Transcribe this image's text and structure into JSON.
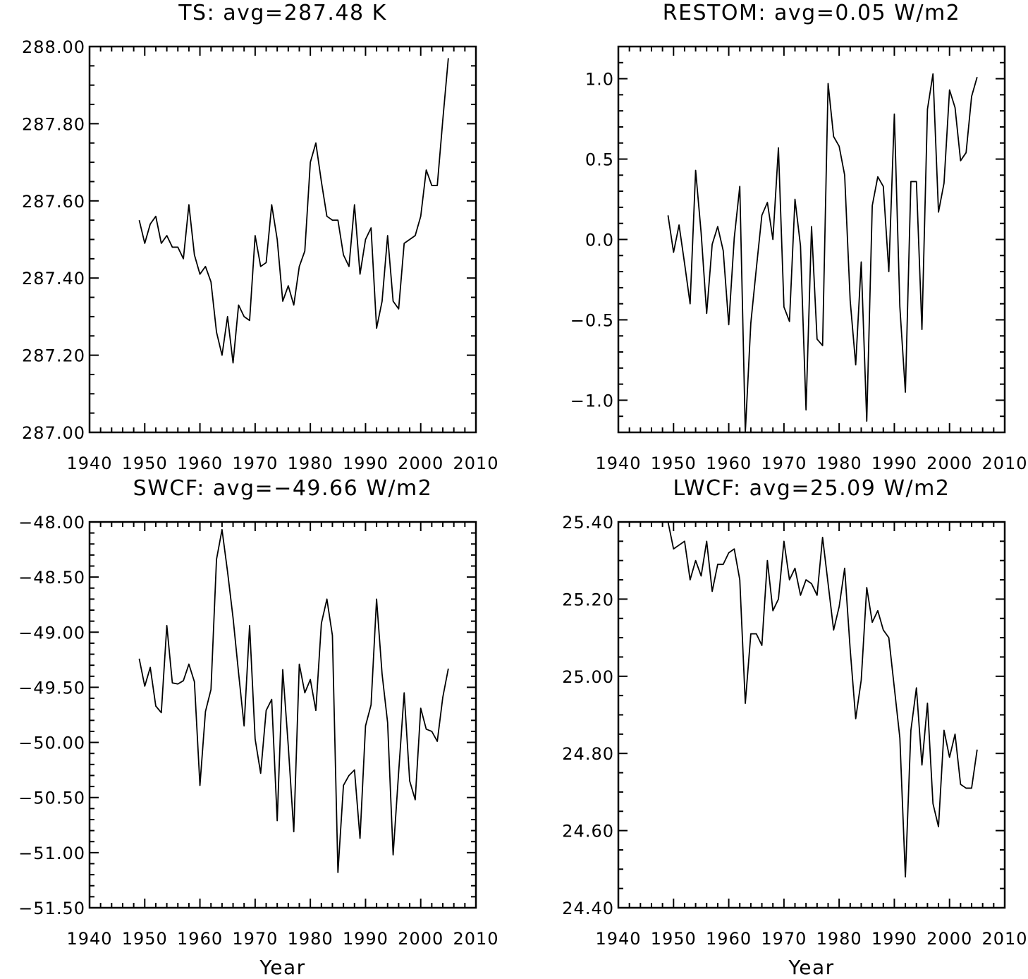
{
  "chart_data": [
    {
      "type": "line",
      "title": "TS: avg=287.48 K",
      "xlabel": "",
      "ylabel": "",
      "xlim": [
        1940,
        2010
      ],
      "ylim": [
        287.0,
        288.0
      ],
      "x_ticks": [
        1940,
        1950,
        1960,
        1970,
        1980,
        1990,
        2000,
        2010
      ],
      "x_tick_labels": [
        "1940",
        "1950",
        "1960",
        "1970",
        "1980",
        "1990",
        "2000",
        "2010"
      ],
      "y_ticks": [
        287.0,
        287.2,
        287.4,
        287.6,
        287.8,
        288.0
      ],
      "y_tick_labels": [
        "287.00",
        "287.20",
        "287.40",
        "287.60",
        "287.80",
        "288.00"
      ],
      "y_minor_step": 0.05,
      "grid": false,
      "x": [
        1949,
        1950,
        1951,
        1952,
        1953,
        1954,
        1955,
        1956,
        1957,
        1958,
        1959,
        1960,
        1961,
        1962,
        1963,
        1964,
        1965,
        1966,
        1967,
        1968,
        1969,
        1970,
        1971,
        1972,
        1973,
        1974,
        1975,
        1976,
        1977,
        1978,
        1979,
        1980,
        1981,
        1982,
        1983,
        1984,
        1985,
        1986,
        1987,
        1988,
        1989,
        1990,
        1991,
        1992,
        1993,
        1994,
        1995,
        1996,
        1997,
        1998,
        1999,
        2000,
        2001,
        2002,
        2003,
        2004,
        2005
      ],
      "y": [
        287.55,
        287.49,
        287.54,
        287.56,
        287.49,
        287.51,
        287.48,
        287.48,
        287.45,
        287.59,
        287.46,
        287.41,
        287.43,
        287.39,
        287.26,
        287.2,
        287.3,
        287.18,
        287.33,
        287.3,
        287.29,
        287.51,
        287.43,
        287.44,
        287.59,
        287.5,
        287.34,
        287.38,
        287.33,
        287.43,
        287.47,
        287.7,
        287.75,
        287.65,
        287.56,
        287.55,
        287.55,
        287.46,
        287.43,
        287.59,
        287.41,
        287.5,
        287.53,
        287.27,
        287.34,
        287.51,
        287.34,
        287.32,
        287.49,
        287.5,
        287.51,
        287.56,
        287.68,
        287.64,
        287.64,
        287.81,
        287.97
      ]
    },
    {
      "type": "line",
      "title": "RESTOM: avg=0.05 W/m2",
      "xlabel": "",
      "ylabel": "",
      "xlim": [
        1940,
        2010
      ],
      "ylim": [
        -1.2,
        1.2
      ],
      "x_ticks": [
        1940,
        1950,
        1960,
        1970,
        1980,
        1990,
        2000,
        2010
      ],
      "x_tick_labels": [
        "1940",
        "1950",
        "1960",
        "1970",
        "1980",
        "1990",
        "2000",
        "2010"
      ],
      "y_ticks": [
        -1.0,
        -0.5,
        0.0,
        0.5,
        1.0
      ],
      "y_tick_labels": [
        "−1.0",
        "−0.5",
        "0.0",
        "0.5",
        "1.0"
      ],
      "y_minor_step": 0.1,
      "grid": false,
      "x": [
        1949,
        1950,
        1951,
        1952,
        1953,
        1954,
        1955,
        1956,
        1957,
        1958,
        1959,
        1960,
        1961,
        1962,
        1963,
        1964,
        1965,
        1966,
        1967,
        1968,
        1969,
        1970,
        1971,
        1972,
        1973,
        1974,
        1975,
        1976,
        1977,
        1978,
        1979,
        1980,
        1981,
        1982,
        1983,
        1984,
        1985,
        1986,
        1987,
        1988,
        1989,
        1990,
        1991,
        1992,
        1993,
        1994,
        1995,
        1996,
        1997,
        1998,
        1999,
        2000,
        2001,
        2002,
        2003,
        2004,
        2005
      ],
      "y": [
        0.15,
        -0.08,
        0.09,
        -0.15,
        -0.4,
        0.43,
        0.04,
        -0.46,
        -0.03,
        0.08,
        -0.07,
        -0.53,
        0.01,
        0.33,
        -1.2,
        -0.52,
        -0.18,
        0.15,
        0.23,
        0.0,
        0.57,
        -0.42,
        -0.51,
        0.25,
        -0.04,
        -1.06,
        0.08,
        -0.62,
        -0.66,
        0.97,
        0.64,
        0.58,
        0.4,
        -0.38,
        -0.78,
        -0.14,
        -1.13,
        0.21,
        0.39,
        0.33,
        -0.2,
        0.78,
        -0.42,
        -0.95,
        0.36,
        0.36,
        -0.56,
        0.81,
        1.03,
        0.17,
        0.35,
        0.93,
        0.82,
        0.49,
        0.54,
        0.89,
        1.01
      ]
    },
    {
      "type": "line",
      "title": "SWCF: avg=−49.66 W/m2",
      "xlabel": "Year",
      "ylabel": "",
      "xlim": [
        1940,
        2010
      ],
      "ylim": [
        -51.5,
        -48.0
      ],
      "x_ticks": [
        1940,
        1950,
        1960,
        1970,
        1980,
        1990,
        2000,
        2010
      ],
      "x_tick_labels": [
        "1940",
        "1950",
        "1960",
        "1970",
        "1980",
        "1990",
        "2000",
        "2010"
      ],
      "y_ticks": [
        -51.5,
        -51.0,
        -50.5,
        -50.0,
        -49.5,
        -49.0,
        -48.5,
        -48.0
      ],
      "y_tick_labels": [
        "−51.50",
        "−51.00",
        "−50.50",
        "−50.00",
        "−49.50",
        "−49.00",
        "−48.50",
        "−48.00"
      ],
      "y_minor_step": 0.1,
      "grid": false,
      "x": [
        1949,
        1950,
        1951,
        1952,
        1953,
        1954,
        1955,
        1956,
        1957,
        1958,
        1959,
        1960,
        1961,
        1962,
        1963,
        1964,
        1965,
        1966,
        1967,
        1968,
        1969,
        1970,
        1971,
        1972,
        1973,
        1974,
        1975,
        1976,
        1977,
        1978,
        1979,
        1980,
        1981,
        1982,
        1983,
        1984,
        1985,
        1986,
        1987,
        1988,
        1989,
        1990,
        1991,
        1992,
        1993,
        1994,
        1995,
        1996,
        1997,
        1998,
        1999,
        2000,
        2001,
        2002,
        2003,
        2004,
        2005
      ],
      "y": [
        -49.24,
        -49.49,
        -49.32,
        -49.67,
        -49.73,
        -48.94,
        -49.46,
        -49.47,
        -49.44,
        -49.29,
        -49.45,
        -50.39,
        -49.72,
        -49.52,
        -48.34,
        -48.07,
        -48.45,
        -48.87,
        -49.37,
        -49.85,
        -48.94,
        -49.97,
        -50.28,
        -49.71,
        -49.61,
        -50.71,
        -49.34,
        -50.03,
        -50.81,
        -49.29,
        -49.55,
        -49.43,
        -49.71,
        -48.92,
        -48.7,
        -49.03,
        -51.18,
        -50.39,
        -50.3,
        -50.25,
        -50.87,
        -49.85,
        -49.66,
        -48.7,
        -49.38,
        -49.82,
        -51.02,
        -50.27,
        -49.55,
        -50.35,
        -50.52,
        -49.69,
        -49.88,
        -49.9,
        -49.99,
        -49.59,
        -49.33
      ]
    },
    {
      "type": "line",
      "title": "LWCF: avg=25.09 W/m2",
      "xlabel": "Year",
      "ylabel": "",
      "xlim": [
        1940,
        2010
      ],
      "ylim": [
        24.4,
        25.4
      ],
      "x_ticks": [
        1940,
        1950,
        1960,
        1970,
        1980,
        1990,
        2000,
        2010
      ],
      "x_tick_labels": [
        "1940",
        "1950",
        "1960",
        "1970",
        "1980",
        "1990",
        "2000",
        "2010"
      ],
      "y_ticks": [
        24.4,
        24.6,
        24.8,
        25.0,
        25.2,
        25.4
      ],
      "y_tick_labels": [
        "24.40",
        "24.60",
        "24.80",
        "25.00",
        "25.20",
        "25.40"
      ],
      "y_minor_step": 0.05,
      "grid": false,
      "x": [
        1949,
        1950,
        1951,
        1952,
        1953,
        1954,
        1955,
        1956,
        1957,
        1958,
        1959,
        1960,
        1961,
        1962,
        1963,
        1964,
        1965,
        1966,
        1967,
        1968,
        1969,
        1970,
        1971,
        1972,
        1973,
        1974,
        1975,
        1976,
        1977,
        1978,
        1979,
        1980,
        1981,
        1982,
        1983,
        1984,
        1985,
        1986,
        1987,
        1988,
        1989,
        1990,
        1991,
        1992,
        1993,
        1994,
        1995,
        1996,
        1997,
        1998,
        1999,
        2000,
        2001,
        2002,
        2003,
        2004,
        2005
      ],
      "y": [
        25.4,
        25.33,
        25.34,
        25.35,
        25.25,
        25.3,
        25.26,
        25.35,
        25.22,
        25.29,
        25.29,
        25.32,
        25.33,
        25.25,
        24.93,
        25.11,
        25.11,
        25.08,
        25.3,
        25.17,
        25.2,
        25.35,
        25.25,
        25.28,
        25.21,
        25.25,
        25.24,
        25.21,
        25.36,
        25.24,
        25.12,
        25.18,
        25.28,
        25.07,
        24.89,
        24.99,
        25.23,
        25.14,
        25.17,
        25.12,
        25.1,
        24.97,
        24.84,
        24.48,
        24.86,
        24.97,
        24.77,
        24.93,
        24.67,
        24.61,
        24.86,
        24.79,
        24.85,
        24.72,
        24.71,
        24.71,
        24.81
      ]
    }
  ]
}
